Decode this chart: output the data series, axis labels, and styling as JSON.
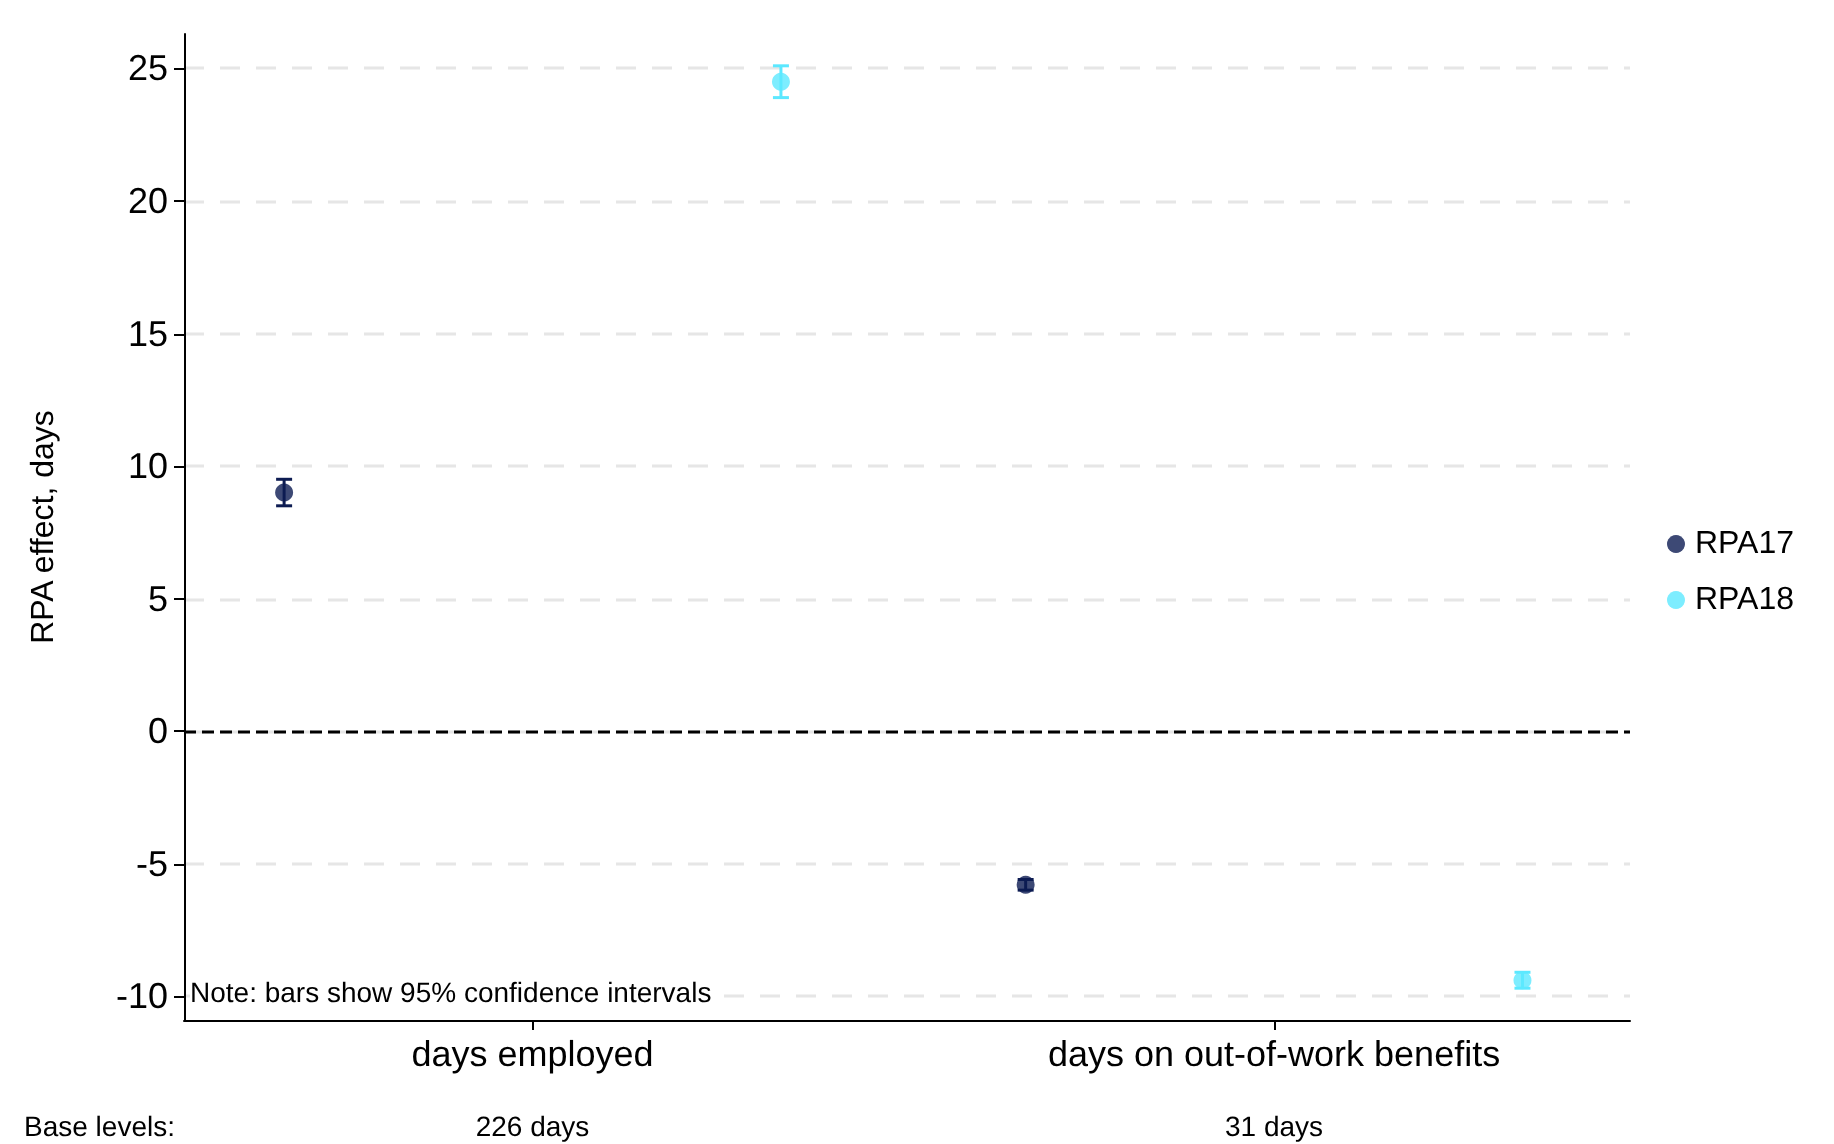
{
  "chart_data": {
    "type": "scatter",
    "ylabel": "RPA effect, days",
    "categories": [
      "days employed",
      "days on out-of-work benefits"
    ],
    "series": [
      {
        "name": "RPA17",
        "color": "#0d1c52",
        "values": [
          9.0,
          -5.8
        ],
        "errors": [
          0.5,
          0.2
        ]
      },
      {
        "name": "RPA18",
        "color": "#5ce8ff",
        "values": [
          24.5,
          -9.4
        ],
        "errors": [
          0.6,
          0.3
        ]
      }
    ],
    "ylim": [
      -10.9,
      26.3
    ],
    "yticks": [
      -10,
      -5,
      0,
      5,
      10,
      15,
      20,
      25
    ],
    "grid": "y",
    "legend": "right",
    "marker": "circle",
    "ref_lines": [
      {
        "axis": "y",
        "value": 0,
        "color": "#000000",
        "line_style": "dashed"
      }
    ],
    "annotations": [
      "Note: bars show 95% confidence intervals",
      "Base levels:",
      "226 days",
      "31 days"
    ]
  }
}
